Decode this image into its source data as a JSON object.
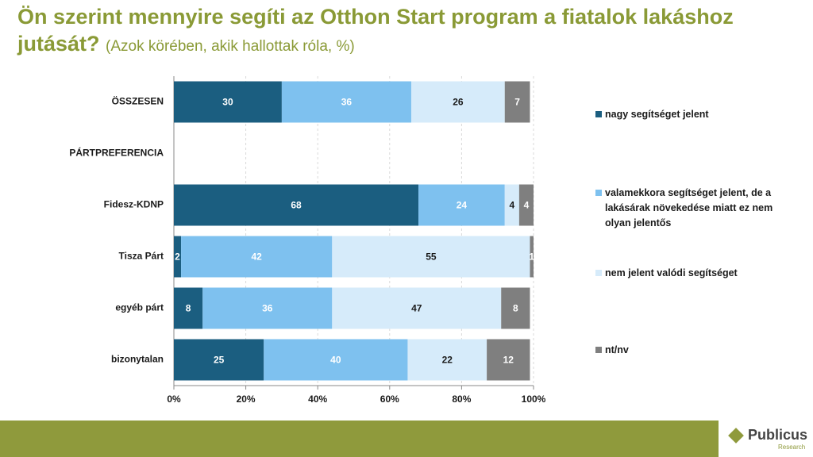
{
  "chart_data": {
    "type": "stacked_bar_horizontal",
    "title": "Ön szerint mennyire segíti az Otthon Start program a fiatalok lakáshoz jutását?",
    "subtitle": "(Azok körében, akik hallottak róla, %)",
    "categories": [
      "ÖSSZESEN",
      "PÁRTPREFERENCIA",
      "Fidesz-KDNP",
      "Tisza Párt",
      "egyéb párt",
      "bizonytalan"
    ],
    "series": [
      {
        "name": "nagy segítséget jelent",
        "color": "#1b5e80",
        "label_color": "#ffffff",
        "values": [
          30,
          null,
          68,
          2,
          8,
          25
        ]
      },
      {
        "name": "valamekkora segítséget jelent, de a lakásárak növekedése miatt ez nem olyan jelentős",
        "color": "#7ec1ef",
        "label_color": "#ffffff",
        "values": [
          36,
          null,
          24,
          42,
          36,
          40
        ]
      },
      {
        "name": "nem jelent valódi segítséget",
        "color": "#d6ebfa",
        "label_color": "#1a1a1a",
        "values": [
          26,
          null,
          4,
          55,
          47,
          22
        ]
      },
      {
        "name": "nt/nv",
        "color": "#7f7f7f",
        "label_color": "#ffffff",
        "values": [
          7,
          null,
          4,
          1,
          8,
          12
        ]
      }
    ],
    "xlim": [
      0,
      100
    ],
    "xticks": [
      {
        "value": 0,
        "label": "0%"
      },
      {
        "value": 20,
        "label": "20%"
      },
      {
        "value": 40,
        "label": "40%"
      },
      {
        "value": 60,
        "label": "60%"
      },
      {
        "value": 80,
        "label": "80%"
      },
      {
        "value": 100,
        "label": "100%"
      }
    ],
    "grid": true
  },
  "footer": {
    "logo": "Publicus",
    "logo_sub": "Research"
  }
}
